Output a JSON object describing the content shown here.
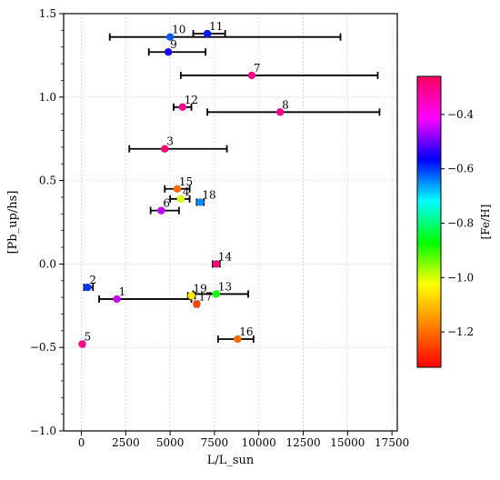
{
  "chart_data": {
    "type": "scatter",
    "xlabel": "L/L_sun",
    "ylabel": "[Pb_up/hs]",
    "xlim": [
      -1000,
      17800
    ],
    "ylim": [
      -1.0,
      1.5
    ],
    "xticks": [
      0,
      2500,
      5000,
      7500,
      10000,
      12500,
      15000,
      17500
    ],
    "yticks": [
      -1.0,
      -0.5,
      0.0,
      0.5,
      1.0,
      1.5
    ],
    "grid": true,
    "colorbar": {
      "label": "[Fe/H]",
      "min": -1.33,
      "max": -0.26,
      "ticks": [
        -1.2,
        -1.0,
        -0.8,
        -0.6,
        -0.4
      ],
      "colormap": [
        "#ff0000",
        "#ff8000",
        "#ffff00",
        "#00ff00",
        "#00ffff",
        "#0000ff",
        "#ff00ff",
        "#ff0060"
      ]
    },
    "points": [
      {
        "label": "1",
        "x": 2000,
        "y": -0.21,
        "xmin": 1000,
        "xmax": 6200,
        "feh": -0.45
      },
      {
        "label": "2",
        "x": 350,
        "y": -0.14,
        "xmin": 150,
        "xmax": 650,
        "feh": -0.6
      },
      {
        "label": "3",
        "x": 4700,
        "y": 0.69,
        "xmin": 2700,
        "xmax": 8200,
        "feh": -0.28
      },
      {
        "label": "5",
        "x": 50,
        "y": -0.48,
        "xmin": 0,
        "xmax": 150,
        "feh": -0.3
      },
      {
        "label": "6",
        "x": 4500,
        "y": 0.32,
        "xmin": 3900,
        "xmax": 5500,
        "feh": -0.45
      },
      {
        "label": "7",
        "x": 9600,
        "y": 1.13,
        "xmin": 5600,
        "xmax": 16700,
        "feh": -0.3
      },
      {
        "label": "8",
        "x": 11200,
        "y": 0.91,
        "xmin": 7100,
        "xmax": 16800,
        "feh": -0.3
      },
      {
        "label": "9",
        "x": 4900,
        "y": 1.27,
        "xmin": 3800,
        "xmax": 7000,
        "feh": -0.55
      },
      {
        "label": "10",
        "x": 5000,
        "y": 1.36,
        "xmin": 1600,
        "xmax": 14600,
        "feh": -0.62
      },
      {
        "label": "11",
        "x": 7100,
        "y": 1.38,
        "xmin": 6300,
        "xmax": 8100,
        "feh": -0.58
      },
      {
        "label": "12",
        "x": 5700,
        "y": 0.94,
        "xmin": 5200,
        "xmax": 6200,
        "feh": -0.3
      },
      {
        "label": "13",
        "x": 7600,
        "y": -0.18,
        "xmin": 6300,
        "xmax": 9400,
        "feh": -0.88
      },
      {
        "label": "14",
        "x": 7600,
        "y": 0.0,
        "xmin": 7400,
        "xmax": 7800,
        "feh": -0.28
      },
      {
        "label": "15",
        "x": 5400,
        "y": 0.45,
        "xmin": 4700,
        "xmax": 6100,
        "feh": -1.2
      },
      {
        "label": "16",
        "x": 8800,
        "y": -0.45,
        "xmin": 7700,
        "xmax": 9700,
        "feh": -1.2
      },
      {
        "label": "17",
        "x": 6500,
        "y": -0.24,
        "xmin": 6400,
        "xmax": 6600,
        "feh": -1.25
      },
      {
        "label": "18",
        "x": 6700,
        "y": 0.37,
        "xmin": 6500,
        "xmax": 6900,
        "feh": -0.65
      },
      {
        "label": "19",
        "x": 6200,
        "y": -0.19,
        "xmin": 6000,
        "xmax": 6400,
        "feh": -1.05
      },
      {
        "label": "4",
        "x": 5600,
        "y": 0.39,
        "xmin": 5000,
        "xmax": 6100,
        "feh": -1.0
      }
    ]
  }
}
